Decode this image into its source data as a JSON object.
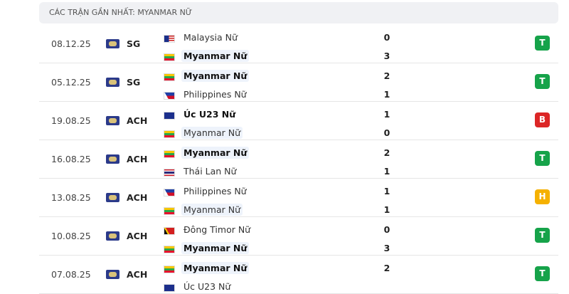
{
  "header": {
    "title": "CÁC TRẬN GẦN NHẤT: MYANMAR NỮ"
  },
  "matches": [
    {
      "date": "08.12.25",
      "competition": "SG",
      "home": {
        "name": "Malaysia Nữ",
        "score": 0,
        "bold": false,
        "highlight": false
      },
      "away": {
        "name": "Myanmar Nữ",
        "score": 3,
        "bold": true,
        "highlight": true
      },
      "result": "T",
      "result_color": "#16a34a"
    },
    {
      "date": "05.12.25",
      "competition": "SG",
      "home": {
        "name": "Myanmar Nữ",
        "score": 2,
        "bold": true,
        "highlight": true
      },
      "away": {
        "name": "Philippines Nữ",
        "score": 1,
        "bold": false,
        "highlight": false
      },
      "result": "T",
      "result_color": "#16a34a"
    },
    {
      "date": "19.08.25",
      "competition": "ACH",
      "home": {
        "name": "Úc U23 Nữ",
        "score": 1,
        "bold": true,
        "highlight": false
      },
      "away": {
        "name": "Myanmar Nữ",
        "score": 0,
        "bold": false,
        "highlight": true
      },
      "result": "B",
      "result_color": "#dc2626"
    },
    {
      "date": "16.08.25",
      "competition": "ACH",
      "home": {
        "name": "Myanmar Nữ",
        "score": 2,
        "bold": true,
        "highlight": true
      },
      "away": {
        "name": "Thái Lan Nữ",
        "score": 1,
        "bold": false,
        "highlight": false
      },
      "result": "T",
      "result_color": "#16a34a"
    },
    {
      "date": "13.08.25",
      "competition": "ACH",
      "home": {
        "name": "Philippines Nữ",
        "score": 1,
        "bold": false,
        "highlight": false
      },
      "away": {
        "name": "Myanmar Nữ",
        "score": 1,
        "bold": false,
        "highlight": true
      },
      "result": "H",
      "result_color": "#f5b100"
    },
    {
      "date": "10.08.25",
      "competition": "ACH",
      "home": {
        "name": "Đông Timor Nữ",
        "score": 0,
        "bold": false,
        "highlight": false
      },
      "away": {
        "name": "Myanmar Nữ",
        "score": 3,
        "bold": true,
        "highlight": true
      },
      "result": "T",
      "result_color": "#16a34a"
    },
    {
      "date": "07.08.25",
      "competition": "ACH",
      "home": {
        "name": "Myanmar Nữ",
        "score": 2,
        "bold": true,
        "highlight": true
      },
      "away": {
        "name": "Úc U23 Nữ",
        "score": null,
        "bold": false,
        "highlight": false
      },
      "result": "T",
      "result_color": "#16a34a"
    }
  ]
}
